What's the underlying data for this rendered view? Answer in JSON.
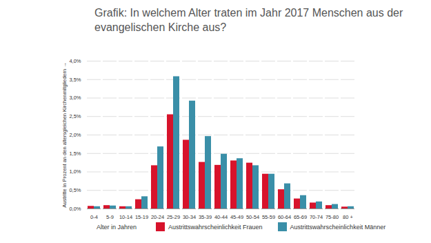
{
  "chart_data": {
    "type": "bar",
    "title": "Grafik: In welchem Alter traten im Jahr 2017 Menschen aus der evangelischen Kirche aus?",
    "x_label": "Alter in Jahren",
    "y_label": "Austritte in Prozent an den altersgleichen Kirchenmitgliedern",
    "categories": [
      "0-4",
      "5-9",
      "10-14",
      "15-19",
      "20-24",
      "25-29",
      "30-34",
      "35-39",
      "40-44",
      "45-49",
      "50-54",
      "55-59",
      "60-64",
      "65-69",
      "70-74",
      "75-80",
      "80 +"
    ],
    "series": [
      {
        "name": "Austrittswahrscheinlichkeit Frauen",
        "color": "#d7132b",
        "values": [
          0.07,
          0.09,
          0.06,
          0.25,
          1.17,
          2.55,
          1.86,
          1.26,
          1.18,
          1.3,
          1.24,
          0.94,
          0.52,
          0.27,
          0.16,
          0.09,
          0.05
        ]
      },
      {
        "name": "Austrittswahrscheinlichkeit Männer",
        "color": "#3a8fa8",
        "values": [
          0.06,
          0.08,
          0.06,
          0.33,
          1.68,
          3.58,
          2.92,
          1.96,
          1.48,
          1.36,
          1.17,
          0.94,
          0.68,
          0.36,
          0.19,
          0.12,
          0.06
        ]
      }
    ],
    "ylim": [
      0,
      4
    ],
    "yticks": [
      {
        "value": 0,
        "label": "0,0%"
      },
      {
        "value": 0.5,
        "label": "0,5%"
      },
      {
        "value": 1,
        "label": "1,0%"
      },
      {
        "value": 1.5,
        "label": "1,5%"
      },
      {
        "value": 2,
        "label": "2,0%"
      },
      {
        "value": 2.5,
        "label": "2,5%"
      },
      {
        "value": 3,
        "label": "3,0%"
      },
      {
        "value": 3.5,
        "label": "3,5%"
      },
      {
        "value": 4,
        "label": "4,0%"
      }
    ],
    "grid": true,
    "legend": "bottom"
  }
}
